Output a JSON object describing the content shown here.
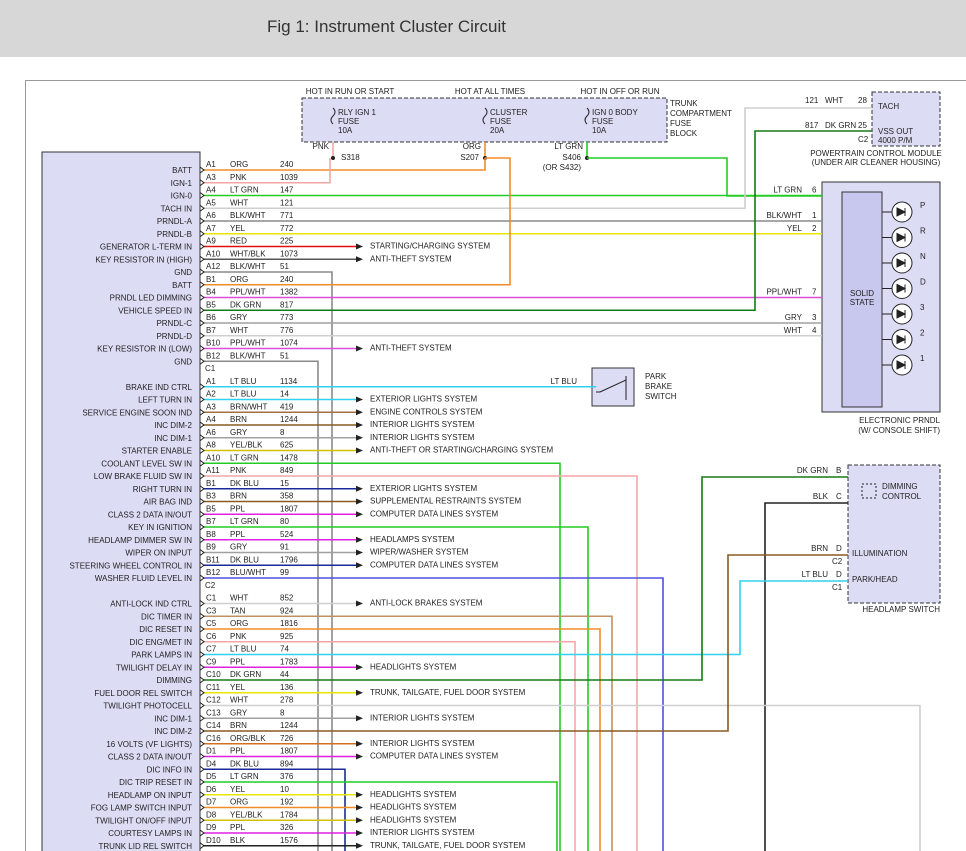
{
  "header": {
    "title": "Fig 1: Instrument Cluster Circuit"
  },
  "fuse_block": {
    "heads": [
      "HOT IN RUN OR START",
      "HOT AT ALL TIMES",
      "HOT IN OFF OR RUN"
    ],
    "fuses": [
      [
        "RLY IGN 1",
        "FUSE",
        "10A"
      ],
      [
        "CLUSTER",
        "FUSE",
        "20A"
      ],
      [
        "IGN 0 BODY",
        "FUSE",
        "10A"
      ]
    ],
    "name": [
      "TRUNK",
      "COMPARTMENT",
      "FUSE",
      "BLOCK"
    ],
    "feeds": [
      {
        "color": "PNK",
        "stroke": "#f4a6a6",
        "splice": [
          "S318"
        ]
      },
      {
        "color": "ORG",
        "stroke": "#f28c28",
        "splice": [
          "S207"
        ]
      },
      {
        "color": "LT GRN",
        "stroke": "#22cc22",
        "splice": [
          "S406",
          "(OR S432)"
        ]
      }
    ]
  },
  "pcm": {
    "pins": [
      {
        "circuit": "121",
        "color": "WHT",
        "pin": "28",
        "output": [
          "TACH"
        ]
      },
      {
        "circuit": "817",
        "color": "DK GRN",
        "pin": "25",
        "output": [
          "VSS OUT",
          "4000 P/M"
        ]
      }
    ],
    "connector": "C2",
    "caption": [
      "POWERTRAIN CONTROL MODULE",
      "(UNDER AIR CLEANER HOUSING)"
    ]
  },
  "prndl": {
    "pins": [
      {
        "color": "LT GRN",
        "pin": "6"
      },
      {
        "color": "BLK/WHT",
        "pin": "1"
      },
      {
        "color": "YEL",
        "pin": "2"
      },
      {
        "color": "PPL/WHT",
        "pin": "7"
      },
      {
        "color": "GRY",
        "pin": "3"
      },
      {
        "color": "WHT",
        "pin": "4"
      }
    ],
    "block": [
      "SOLID",
      "STATE"
    ],
    "gears": [
      "P",
      "R",
      "N",
      "D",
      "3",
      "2",
      "1"
    ],
    "caption": [
      "ELECTRONIC PRNDL",
      "(W/ CONSOLE SHIFT)"
    ]
  },
  "park_brake": {
    "color": "LT BLU",
    "name": [
      "PARK",
      "BRAKE",
      "SWITCH"
    ]
  },
  "headlamp_switch": {
    "pins": [
      {
        "color": "DK GRN",
        "pin": "B"
      },
      {
        "color": "BLK",
        "pin": "C"
      },
      {
        "color": "BRN",
        "pin": "D"
      },
      {
        "color": "LT BLU",
        "pin": "D"
      }
    ],
    "connectors": [
      "C2",
      "C1"
    ],
    "dimming": [
      "DIMMING",
      "CONTROL"
    ],
    "illumination": "ILLUMINATION",
    "park_head": "PARK/HEAD",
    "caption": "HEADLAMP SWITCH",
    "blk_stroke": "#222"
  },
  "cluster": {
    "sections": [
      {
        "rows": [
          {
            "label": "BATT",
            "pin": "A1",
            "color": "ORG",
            "circuit": "240",
            "stroke": "#f28c28"
          },
          {
            "label": "IGN-1",
            "pin": "A3",
            "color": "PNK",
            "circuit": "1039",
            "stroke": "#f4a6a6"
          },
          {
            "label": "IGN-0",
            "pin": "A4",
            "color": "LT GRN",
            "circuit": "147",
            "stroke": "#22cc22"
          },
          {
            "label": "TACH IN",
            "pin": "A5",
            "color": "WHT",
            "circuit": "121",
            "stroke": "#cfcfcf"
          },
          {
            "label": "PRNDL-A",
            "pin": "A6",
            "color": "BLK/WHT",
            "circuit": "771",
            "stroke": "#8a8a8a"
          },
          {
            "label": "PRNDL-B",
            "pin": "A7",
            "color": "YEL",
            "circuit": "772",
            "stroke": "#e6e600"
          },
          {
            "label": "GENERATOR L-TERM IN",
            "pin": "A9",
            "color": "RED",
            "circuit": "225",
            "stroke": "#e01010",
            "dest": "STARTING/CHARGING SYSTEM"
          },
          {
            "label": "KEY RESISTOR IN (HIGH)",
            "pin": "A10",
            "color": "WHT/BLK",
            "circuit": "1073",
            "stroke": "#555555",
            "dest": "ANTI-THEFT SYSTEM"
          },
          {
            "label": "GND",
            "pin": "A12",
            "color": "BLK/WHT",
            "circuit": "51",
            "stroke": "#8a8a8a"
          },
          {
            "label": "BATT",
            "pin": "B1",
            "color": "ORG",
            "circuit": "240",
            "stroke": "#f28c28"
          },
          {
            "label": "PRNDL LED DIMMING",
            "pin": "B4",
            "color": "PPL/WHT",
            "circuit": "1382",
            "stroke": "#d94fd9"
          },
          {
            "label": "VEHICLE SPEED IN",
            "pin": "B5",
            "color": "DK GRN",
            "circuit": "817",
            "stroke": "#157a15"
          },
          {
            "label": "PRNDL-C",
            "pin": "B6",
            "color": "GRY",
            "circuit": "773",
            "stroke": "#a0a0a0"
          },
          {
            "label": "PRNDL-D",
            "pin": "B7",
            "color": "WHT",
            "circuit": "776",
            "stroke": "#cfcfcf"
          },
          {
            "label": "KEY RESISTOR IN (LOW)",
            "pin": "B10",
            "color": "PPL/WHT",
            "circuit": "1074",
            "stroke": "#d94fd9",
            "dest": "ANTI-THEFT SYSTEM"
          },
          {
            "label": "GND",
            "pin": "B12",
            "color": "BLK/WHT",
            "circuit": "51",
            "stroke": "#8a8a8a"
          }
        ]
      },
      {
        "connector": "C1",
        "rows": [
          {
            "label": "BRAKE IND CTRL",
            "pin": "A1",
            "color": "LT BLU",
            "circuit": "1134",
            "stroke": "#30d0f0"
          },
          {
            "label": "LEFT TURN IN",
            "pin": "A2",
            "color": "LT BLU",
            "circuit": "14",
            "stroke": "#30d0f0",
            "dest": "EXTERIOR LIGHTS SYSTEM"
          },
          {
            "label": "SERVICE ENGINE SOON IND",
            "pin": "A3",
            "color": "BRN/WHT",
            "circuit": "419",
            "stroke": "#a07040",
            "dest": "ENGINE CONTROLS SYSTEM"
          },
          {
            "label": "INC DIM-2",
            "pin": "A4",
            "color": "BRN",
            "circuit": "1244",
            "stroke": "#8a5a20",
            "dest": "INTERIOR LIGHTS SYSTEM"
          },
          {
            "label": "INC DIM-1",
            "pin": "A6",
            "color": "GRY",
            "circuit": "8",
            "stroke": "#a0a0a0",
            "dest": "INTERIOR LIGHTS SYSTEM"
          },
          {
            "label": "STARTER ENABLE",
            "pin": "A8",
            "color": "YEL/BLK",
            "circuit": "625",
            "stroke": "#d0c000",
            "dest": "ANTI-THEFT OR STARTING/CHARGING SYSTEM"
          },
          {
            "label": "COOLANT LEVEL SW IN",
            "pin": "A10",
            "color": "LT GRN",
            "circuit": "1478",
            "stroke": "#22cc22"
          },
          {
            "label": "LOW BRAKE FLUID SW IN",
            "pin": "A11",
            "color": "PNK",
            "circuit": "849",
            "stroke": "#f4a6a6"
          },
          {
            "label": "RIGHT TURN IN",
            "pin": "B1",
            "color": "DK BLU",
            "circuit": "15",
            "stroke": "#1a2a9a",
            "dest": "EXTERIOR LIGHTS SYSTEM"
          },
          {
            "label": "AIR BAG IND",
            "pin": "B3",
            "color": "BRN",
            "circuit": "358",
            "stroke": "#8a5a20",
            "dest": "SUPPLEMENTAL RESTRAINTS SYSTEM"
          },
          {
            "label": "CLASS 2 DATA IN/OUT",
            "pin": "B5",
            "color": "PPL",
            "circuit": "1807",
            "stroke": "#e020e0",
            "dest": "COMPUTER DATA LINES SYSTEM"
          },
          {
            "label": "KEY IN IGNITION",
            "pin": "B7",
            "color": "LT GRN",
            "circuit": "80",
            "stroke": "#22cc22"
          },
          {
            "label": "HEADLAMP DIMMER SW IN",
            "pin": "B8",
            "color": "PPL",
            "circuit": "524",
            "stroke": "#e020e0",
            "dest": "HEADLAMPS SYSTEM"
          },
          {
            "label": "WIPER ON INPUT",
            "pin": "B9",
            "color": "GRY",
            "circuit": "91",
            "stroke": "#a0a0a0",
            "dest": "WIPER/WASHER SYSTEM"
          },
          {
            "label": "STEERING WHEEL CONTROL IN",
            "pin": "B11",
            "color": "DK BLU",
            "circuit": "1796",
            "stroke": "#1a2a9a",
            "dest": "COMPUTER DATA LINES SYSTEM"
          },
          {
            "label": "WASHER FLUID LEVEL IN",
            "pin": "B12",
            "color": "BLU/WHT",
            "circuit": "99",
            "stroke": "#5050e0"
          }
        ]
      },
      {
        "connector": "C2",
        "rows": [
          {
            "label": "ANTI-LOCK IND CTRL",
            "pin": "C1",
            "color": "WHT",
            "circuit": "852",
            "stroke": "#cfcfcf",
            "dest": "ANTI-LOCK BRAKES SYSTEM"
          },
          {
            "label": "DIC TIMER IN",
            "pin": "C3",
            "color": "TAN",
            "circuit": "924",
            "stroke": "#c09060"
          },
          {
            "label": "DIC RESET IN",
            "pin": "C5",
            "color": "ORG",
            "circuit": "1816",
            "stroke": "#f28c28"
          },
          {
            "label": "DIC ENG/MET IN",
            "pin": "C6",
            "color": "PNK",
            "circuit": "925",
            "stroke": "#f4a6a6"
          },
          {
            "label": "PARK LAMPS IN",
            "pin": "C7",
            "color": "LT BLU",
            "circuit": "74",
            "stroke": "#30d0f0"
          },
          {
            "label": "TWILIGHT DELAY IN",
            "pin": "C9",
            "color": "PPL",
            "circuit": "1783",
            "stroke": "#e020e0",
            "dest": "HEADLIGHTS SYSTEM"
          },
          {
            "label": "DIMMING",
            "pin": "C10",
            "color": "DK GRN",
            "circuit": "44",
            "stroke": "#157a15"
          },
          {
            "label": "FUEL DOOR REL SWITCH",
            "pin": "C11",
            "color": "YEL",
            "circuit": "136",
            "stroke": "#e6e600",
            "dest": "TRUNK, TAILGATE, FUEL DOOR SYSTEM"
          },
          {
            "label": "TWILIGHT PHOTOCELL",
            "pin": "C12",
            "color": "WHT",
            "circuit": "278",
            "stroke": "#cfcfcf"
          },
          {
            "label": "INC DIM-1",
            "pin": "C13",
            "color": "GRY",
            "circuit": "8",
            "stroke": "#a0a0a0",
            "dest": "INTERIOR LIGHTS SYSTEM"
          },
          {
            "label": "INC DIM-2",
            "pin": "C14",
            "color": "BRN",
            "circuit": "1244",
            "stroke": "#8a5a20"
          },
          {
            "label": "16 VOLTS (VF LIGHTS)",
            "pin": "C16",
            "color": "ORG/BLK",
            "circuit": "726",
            "stroke": "#d07020",
            "dest": "INTERIOR LIGHTS SYSTEM"
          },
          {
            "label": "CLASS 2 DATA IN/OUT",
            "pin": "D1",
            "color": "PPL",
            "circuit": "1807",
            "stroke": "#e020e0",
            "dest": "COMPUTER DATA LINES SYSTEM"
          },
          {
            "label": "DIC INFO IN",
            "pin": "D4",
            "color": "DK BLU",
            "circuit": "894",
            "stroke": "#1a2a9a"
          },
          {
            "label": "DIC TRIP RESET IN",
            "pin": "D5",
            "color": "LT GRN",
            "circuit": "376",
            "stroke": "#22cc22"
          },
          {
            "label": "HEADLAMP ON INPUT",
            "pin": "D6",
            "color": "YEL",
            "circuit": "10",
            "stroke": "#e6e600",
            "dest": "HEADLIGHTS SYSTEM"
          },
          {
            "label": "FOG LAMP SWITCH INPUT",
            "pin": "D7",
            "color": "ORG",
            "circuit": "192",
            "stroke": "#f28c28",
            "dest": "HEADLIGHTS SYSTEM"
          },
          {
            "label": "TWILIGHT ON/OFF INPUT",
            "pin": "D8",
            "color": "YEL/BLK",
            "circuit": "1784",
            "stroke": "#d0c000",
            "dest": "HEADLIGHTS SYSTEM"
          },
          {
            "label": "COURTESY LAMPS IN",
            "pin": "D9",
            "color": "PPL",
            "circuit": "326",
            "stroke": "#e020e0",
            "dest": "INTERIOR LIGHTS SYSTEM"
          },
          {
            "label": "TRUNK LID REL SWITCH",
            "pin": "D10",
            "color": "BLK",
            "circuit": "1576",
            "stroke": "#222222",
            "dest": "TRUNK, TAILGATE, FUEL DOOR SYSTEM"
          }
        ]
      }
    ]
  }
}
